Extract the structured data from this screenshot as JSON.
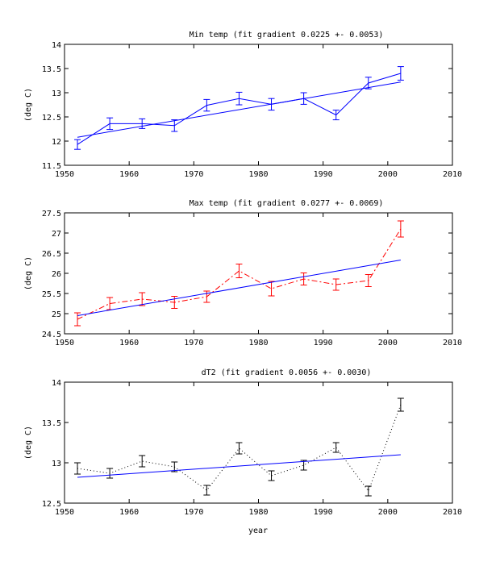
{
  "chart_data": [
    {
      "type": "line",
      "title": "Min temp (fit gradient 0.0225 +- 0.0053)",
      "xlabel": "",
      "ylabel": "(deg C)",
      "xlim": [
        1950,
        2010
      ],
      "ylim": [
        11.5,
        14
      ],
      "xticks": [
        1950,
        1960,
        1970,
        1980,
        1990,
        2000,
        2010
      ],
      "yticks": [
        11.5,
        12,
        12.5,
        13,
        13.5,
        14
      ],
      "ytick_labels": [
        "11.5",
        "12",
        "12.5",
        "13",
        "13.5",
        "14"
      ],
      "grid": false,
      "series": [
        {
          "style": "solid",
          "color": "#0000ff",
          "x": [
            1952,
            1957,
            1962,
            1967,
            1972,
            1977,
            1982,
            1987,
            1992,
            1997,
            2002
          ],
          "y": [
            11.93,
            12.36,
            12.36,
            12.32,
            12.74,
            12.88,
            12.76,
            12.88,
            12.54,
            13.2,
            13.4
          ],
          "err": [
            0.1,
            0.12,
            0.1,
            0.12,
            0.12,
            0.13,
            0.12,
            0.12,
            0.1,
            0.12,
            0.14
          ]
        }
      ],
      "fit": {
        "color": "#0000ff",
        "x": [
          1952,
          2002
        ],
        "y": [
          12.08,
          13.22
        ]
      }
    },
    {
      "type": "line",
      "title": "Max temp (fit gradient 0.0277 +- 0.0069)",
      "xlabel": "",
      "ylabel": "(deg C)",
      "xlim": [
        1950,
        2010
      ],
      "ylim": [
        24.5,
        27.5
      ],
      "xticks": [
        1950,
        1960,
        1970,
        1980,
        1990,
        2000,
        2010
      ],
      "yticks": [
        24.5,
        25,
        25.5,
        26,
        26.5,
        27,
        27.5
      ],
      "ytick_labels": [
        "24.5",
        "25",
        "25.5",
        "26",
        "26.5",
        "27",
        "27.5"
      ],
      "grid": false,
      "series": [
        {
          "style": "dashdot",
          "color": "#ff0000",
          "x": [
            1952,
            1957,
            1962,
            1967,
            1972,
            1977,
            1982,
            1987,
            1992,
            1997,
            2002
          ],
          "y": [
            24.86,
            25.25,
            25.36,
            25.28,
            25.42,
            26.06,
            25.62,
            25.86,
            25.72,
            25.82,
            27.1
          ],
          "err": [
            0.16,
            0.15,
            0.16,
            0.15,
            0.14,
            0.17,
            0.18,
            0.15,
            0.14,
            0.15,
            0.2
          ]
        }
      ],
      "fit": {
        "color": "#0000ff",
        "x": [
          1952,
          2002
        ],
        "y": [
          24.95,
          26.33
        ]
      }
    },
    {
      "type": "line",
      "title": "dT2 (fit gradient 0.0056 +- 0.0030)",
      "xlabel": "year",
      "ylabel": "(deg C)",
      "xlim": [
        1950,
        2010
      ],
      "ylim": [
        12.5,
        14
      ],
      "xticks": [
        1950,
        1960,
        1970,
        1980,
        1990,
        2000,
        2010
      ],
      "yticks": [
        12.5,
        13,
        13.5,
        14
      ],
      "ytick_labels": [
        "12.5",
        "13",
        "13.5",
        "14"
      ],
      "grid": false,
      "series": [
        {
          "style": "dotted",
          "color": "#000000",
          "x": [
            1952,
            1957,
            1962,
            1967,
            1972,
            1977,
            1982,
            1987,
            1992,
            1997,
            2002
          ],
          "y": [
            12.93,
            12.87,
            13.02,
            12.95,
            12.66,
            13.18,
            12.84,
            12.97,
            13.19,
            12.65,
            13.72
          ],
          "err": [
            0.07,
            0.06,
            0.07,
            0.06,
            0.06,
            0.07,
            0.06,
            0.06,
            0.06,
            0.06,
            0.08
          ]
        }
      ],
      "fit": {
        "color": "#0000ff",
        "x": [
          1952,
          2002
        ],
        "y": [
          12.82,
          13.1
        ]
      }
    }
  ]
}
